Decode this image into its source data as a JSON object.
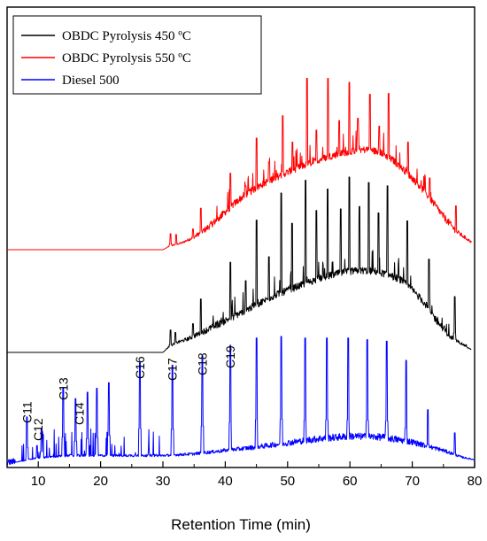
{
  "chart_data": {
    "type": "line",
    "xlabel": "Retention Time (min)",
    "ylabel": "",
    "xlim": [
      5,
      80
    ],
    "x_ticks": [
      10,
      20,
      30,
      40,
      50,
      60,
      70,
      80
    ],
    "y_ticks": [],
    "grid": false,
    "legend_position": "top-left",
    "colors": {
      "series_450": "#000000",
      "series_550": "#ff0000",
      "diesel": "#0000ff"
    },
    "series": [
      {
        "name": "OBDC Pyrolysis 450 ºC",
        "color": "#000000",
        "points": [
          [
            5,
            0.0
          ],
          [
            30,
            0.0
          ],
          [
            31,
            0.7
          ],
          [
            32,
            1.1
          ],
          [
            34,
            1.6
          ],
          [
            36,
            2.3
          ],
          [
            38,
            3.0
          ],
          [
            40,
            3.8
          ],
          [
            42,
            4.6
          ],
          [
            44,
            5.4
          ],
          [
            46,
            6.2
          ],
          [
            48,
            7.0
          ],
          [
            50,
            7.6
          ],
          [
            52,
            8.2
          ],
          [
            54,
            8.8
          ],
          [
            56,
            9.3
          ],
          [
            58,
            9.7
          ],
          [
            60,
            10.0
          ],
          [
            62,
            10.1
          ],
          [
            64,
            10.0
          ],
          [
            66,
            9.6
          ],
          [
            68,
            9.0
          ],
          [
            70,
            7.7
          ],
          [
            72,
            6.0
          ],
          [
            74,
            3.7
          ],
          [
            76,
            1.9
          ],
          [
            78,
            1.0
          ],
          [
            79.5,
            0.3
          ]
        ],
        "peaks": [
          [
            31.2,
            2.8
          ],
          [
            32.0,
            2.5
          ],
          [
            34.8,
            3.6
          ],
          [
            36.1,
            6.7
          ],
          [
            40.8,
            11.3
          ],
          [
            43.3,
            9.0
          ],
          [
            45.0,
            16.6
          ],
          [
            47.0,
            12.0
          ],
          [
            49.0,
            20.0
          ],
          [
            50.7,
            16.2
          ],
          [
            52.9,
            21.6
          ],
          [
            54.6,
            17.8
          ],
          [
            56.4,
            20.5
          ],
          [
            58.5,
            18.0
          ],
          [
            59.9,
            22.0
          ],
          [
            61.5,
            18.3
          ],
          [
            63.0,
            21.3
          ],
          [
            64.6,
            17.5
          ],
          [
            66.0,
            20.9
          ],
          [
            69.2,
            16.5
          ],
          [
            72.7,
            11.7
          ],
          [
            76.8,
            7.0
          ]
        ]
      },
      {
        "name": "OBDC Pyrolysis 550 ºC",
        "color": "#ff0000",
        "points": [
          [
            5,
            0.0
          ],
          [
            30,
            0.0
          ],
          [
            31,
            0.4
          ],
          [
            33,
            0.8
          ],
          [
            35,
            1.5
          ],
          [
            37,
            2.5
          ],
          [
            39,
            3.8
          ],
          [
            41,
            5.3
          ],
          [
            43,
            6.6
          ],
          [
            45,
            7.6
          ],
          [
            47,
            8.5
          ],
          [
            49,
            9.2
          ],
          [
            51,
            9.9
          ],
          [
            53,
            10.5
          ],
          [
            55,
            11.1
          ],
          [
            57,
            11.6
          ],
          [
            59,
            12.0
          ],
          [
            61,
            12.3
          ],
          [
            63,
            12.4
          ],
          [
            65,
            12.0
          ],
          [
            67,
            11.0
          ],
          [
            69,
            9.6
          ],
          [
            71,
            8.0
          ],
          [
            73,
            6.1
          ],
          [
            75,
            4.0
          ],
          [
            77,
            2.2
          ],
          [
            79.5,
            0.9
          ]
        ],
        "peaks": [
          [
            31.2,
            2.0
          ],
          [
            32.1,
            1.9
          ],
          [
            34.8,
            2.6
          ],
          [
            36.1,
            5.2
          ],
          [
            40.8,
            9.6
          ],
          [
            43.3,
            8.0
          ],
          [
            45.0,
            14.0
          ],
          [
            47.0,
            11.0
          ],
          [
            49.2,
            16.8
          ],
          [
            50.8,
            13.5
          ],
          [
            53.1,
            21.5
          ],
          [
            54.6,
            15.0
          ],
          [
            56.5,
            21.5
          ],
          [
            58.3,
            16.2
          ],
          [
            59.9,
            21.0
          ],
          [
            61.3,
            16.5
          ],
          [
            63.2,
            19.5
          ],
          [
            64.7,
            15.5
          ],
          [
            66.2,
            19.6
          ],
          [
            69.3,
            13.5
          ],
          [
            72.8,
            9.0
          ],
          [
            77.0,
            5.5
          ]
        ]
      },
      {
        "name": "Diesel 500",
        "color": "#0000ff",
        "points": [
          [
            5,
            0.0
          ],
          [
            7,
            0.3
          ],
          [
            9,
            0.6
          ],
          [
            11,
            0.8
          ],
          [
            13,
            0.9
          ],
          [
            15,
            1.0
          ],
          [
            20,
            1.0
          ],
          [
            25,
            1.0
          ],
          [
            30,
            1.0
          ],
          [
            35,
            1.2
          ],
          [
            40,
            1.6
          ],
          [
            45,
            2.0
          ],
          [
            50,
            2.5
          ],
          [
            55,
            3.0
          ],
          [
            60,
            3.3
          ],
          [
            65,
            3.2
          ],
          [
            70,
            2.6
          ],
          [
            75,
            1.6
          ],
          [
            78,
            0.8
          ],
          [
            80,
            0.5
          ]
        ],
        "peaks": [
          [
            8.2,
            5.9
          ],
          [
            9.8,
            2.3
          ],
          [
            10.5,
            4.4
          ],
          [
            14.0,
            9.6
          ],
          [
            16.0,
            8.2
          ],
          [
            17.9,
            9.0
          ],
          [
            19.4,
            9.5
          ],
          [
            21.3,
            10.2
          ],
          [
            26.3,
            12.7
          ],
          [
            31.5,
            12.4
          ],
          [
            36.3,
            13.6
          ],
          [
            40.8,
            14.9
          ],
          [
            45.0,
            15.8
          ],
          [
            49.0,
            16.0
          ],
          [
            52.8,
            15.8
          ],
          [
            56.3,
            15.8
          ],
          [
            59.7,
            15.8
          ],
          [
            62.8,
            15.6
          ],
          [
            65.9,
            15.4
          ],
          [
            69.0,
            13.0
          ],
          [
            72.5,
            6.8
          ],
          [
            76.8,
            3.9
          ]
        ]
      }
    ],
    "annotations": [
      {
        "text": "C11",
        "x": 8.2
      },
      {
        "text": "C12",
        "x": 10.0
      },
      {
        "text": "C13",
        "x": 14.0
      },
      {
        "text": "C14",
        "x": 16.6
      },
      {
        "text": "C16",
        "x": 26.3
      },
      {
        "text": "C17",
        "x": 31.5
      },
      {
        "text": "C18",
        "x": 36.3
      },
      {
        "text": "C19",
        "x": 40.8
      }
    ]
  }
}
